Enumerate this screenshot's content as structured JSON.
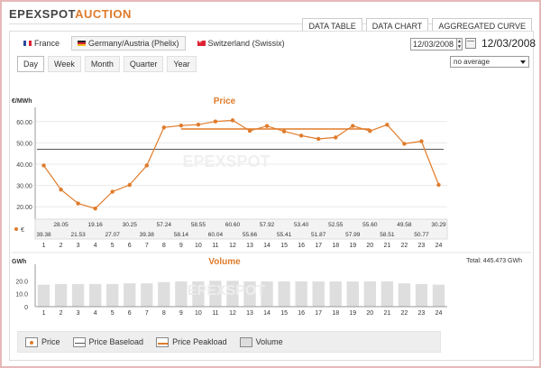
{
  "header": {
    "logo_a": "EPEXSPOT",
    "logo_b": "AUCTION",
    "tabs": [
      "DATA TABLE",
      "DATA CHART",
      "AGGREGATED CURVE"
    ]
  },
  "markets": [
    "France",
    "Germany/Austria (Phelix)",
    "Switzerland (Swissix)"
  ],
  "periods": [
    "Day",
    "Week",
    "Month",
    "Quarter",
    "Year"
  ],
  "date_input": "12/03/2008",
  "date_label": "12/03/2008",
  "average_select": "no average",
  "total_volume": "Total: 445.473 GWh",
  "legend": [
    "Price",
    "Price Baseload",
    "Price Peakload",
    "Volume"
  ],
  "chart_data": [
    {
      "type": "line",
      "title": "Price",
      "ylabel": "€/MWh",
      "x": [
        1,
        2,
        3,
        4,
        5,
        6,
        7,
        8,
        9,
        10,
        11,
        12,
        13,
        14,
        15,
        16,
        17,
        18,
        19,
        20,
        21,
        22,
        23,
        24
      ],
      "ylim": [
        15,
        65
      ],
      "yticks": [
        "20.00",
        "30.00",
        "40.00",
        "50.00",
        "60.00"
      ],
      "yticks_values": [
        20,
        30,
        40,
        50,
        60
      ],
      "values": [
        39.38,
        28.05,
        21.53,
        19.16,
        27.07,
        30.25,
        39.38,
        57.24,
        58.14,
        58.55,
        60.04,
        60.6,
        55.66,
        57.92,
        55.41,
        53.4,
        51.87,
        52.55,
        57.99,
        55.6,
        58.51,
        49.58,
        50.77,
        30.29
      ],
      "value_labels": [
        "39.38",
        "28.05",
        "21.53",
        "19.16",
        "27.07",
        "30.25",
        "39.38",
        "57.24",
        "58.14",
        "58.55",
        "60.04",
        "60.60",
        "55.66",
        "57.92",
        "55.41",
        "53.40",
        "51.87",
        "52.55",
        "57.99",
        "55.60",
        "58.51",
        "49.58",
        "50.77",
        "30.29"
      ],
      "row_symbol": "€",
      "baseload": 47,
      "peakload": {
        "from": 9,
        "to": 20,
        "value": 56.5
      },
      "color": "#e07b2a"
    },
    {
      "type": "bar",
      "title": "Volume",
      "ylabel": "GWh",
      "x": [
        1,
        2,
        3,
        4,
        5,
        6,
        7,
        8,
        9,
        10,
        11,
        12,
        13,
        14,
        15,
        16,
        17,
        18,
        19,
        20,
        21,
        22,
        23,
        24
      ],
      "ylim": [
        0,
        30
      ],
      "yticks": [
        "0",
        "10.0",
        "20.0"
      ],
      "yticks_values": [
        0,
        10,
        20
      ],
      "values": [
        17,
        17.5,
        17.5,
        17.5,
        17.5,
        18,
        18,
        19,
        19.5,
        19.5,
        20,
        20,
        19.5,
        19.5,
        19.5,
        19.5,
        19.5,
        19.5,
        19.5,
        19.5,
        19.5,
        18,
        17.5,
        17
      ],
      "color": "#dedede"
    }
  ]
}
